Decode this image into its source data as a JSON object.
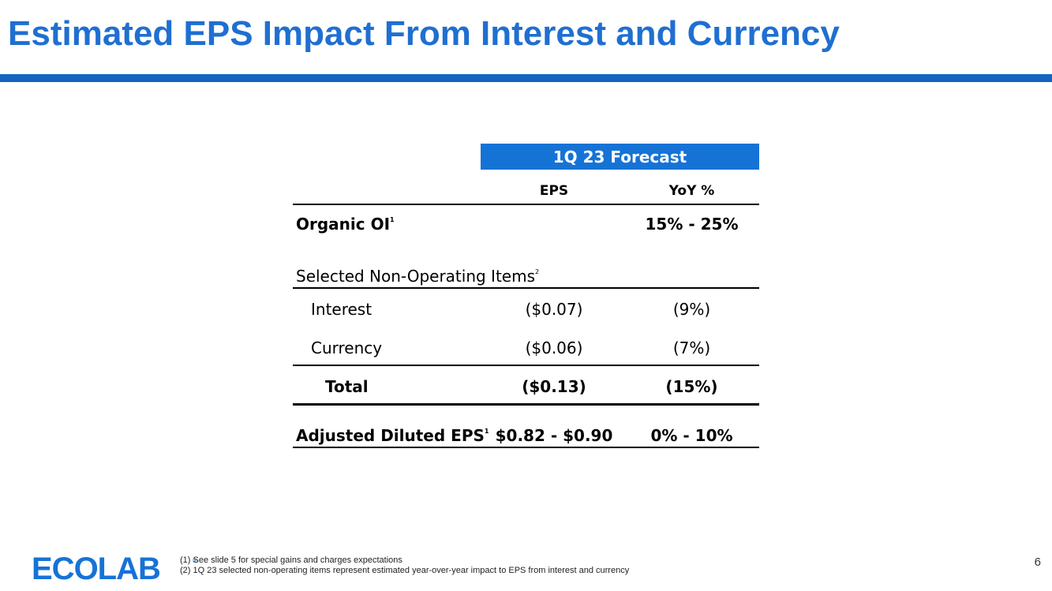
{
  "title": "Estimated EPS Impact From Interest and Currency",
  "table": {
    "group_header": "1Q 23 Forecast",
    "col_eps": "EPS",
    "col_yoy": "YoY %",
    "organic": {
      "label": "Organic OI",
      "sup": "1",
      "eps": "",
      "yoy": "15% - 25%"
    },
    "section": {
      "label": "Selected Non-Operating Items",
      "sup": "2"
    },
    "interest": {
      "label": "Interest",
      "eps": "($0.07)",
      "yoy": "(9%)"
    },
    "currency": {
      "label": "Currency",
      "eps": "($0.06)",
      "yoy": "(7%)"
    },
    "total": {
      "label": "Total",
      "eps": "($0.13)",
      "yoy": "(15%)"
    },
    "adjusted": {
      "label": "Adjusted Diluted EPS",
      "sup": "1",
      "eps": "$0.82 - $0.90",
      "yoy": "0% - 10%"
    }
  },
  "footer": {
    "logo": "ECOLAB",
    "registered": "®",
    "footnote1": "(1)  See slide 5 for special gains and charges expectations",
    "footnote2": "(2)  1Q 23 selected non-operating items represent estimated year-over-year impact to EPS from interest and currency",
    "page_number": "6"
  },
  "colors": {
    "title": "#1f6fd1",
    "bar": "#1565c0",
    "header_fill": "#1673d6"
  }
}
